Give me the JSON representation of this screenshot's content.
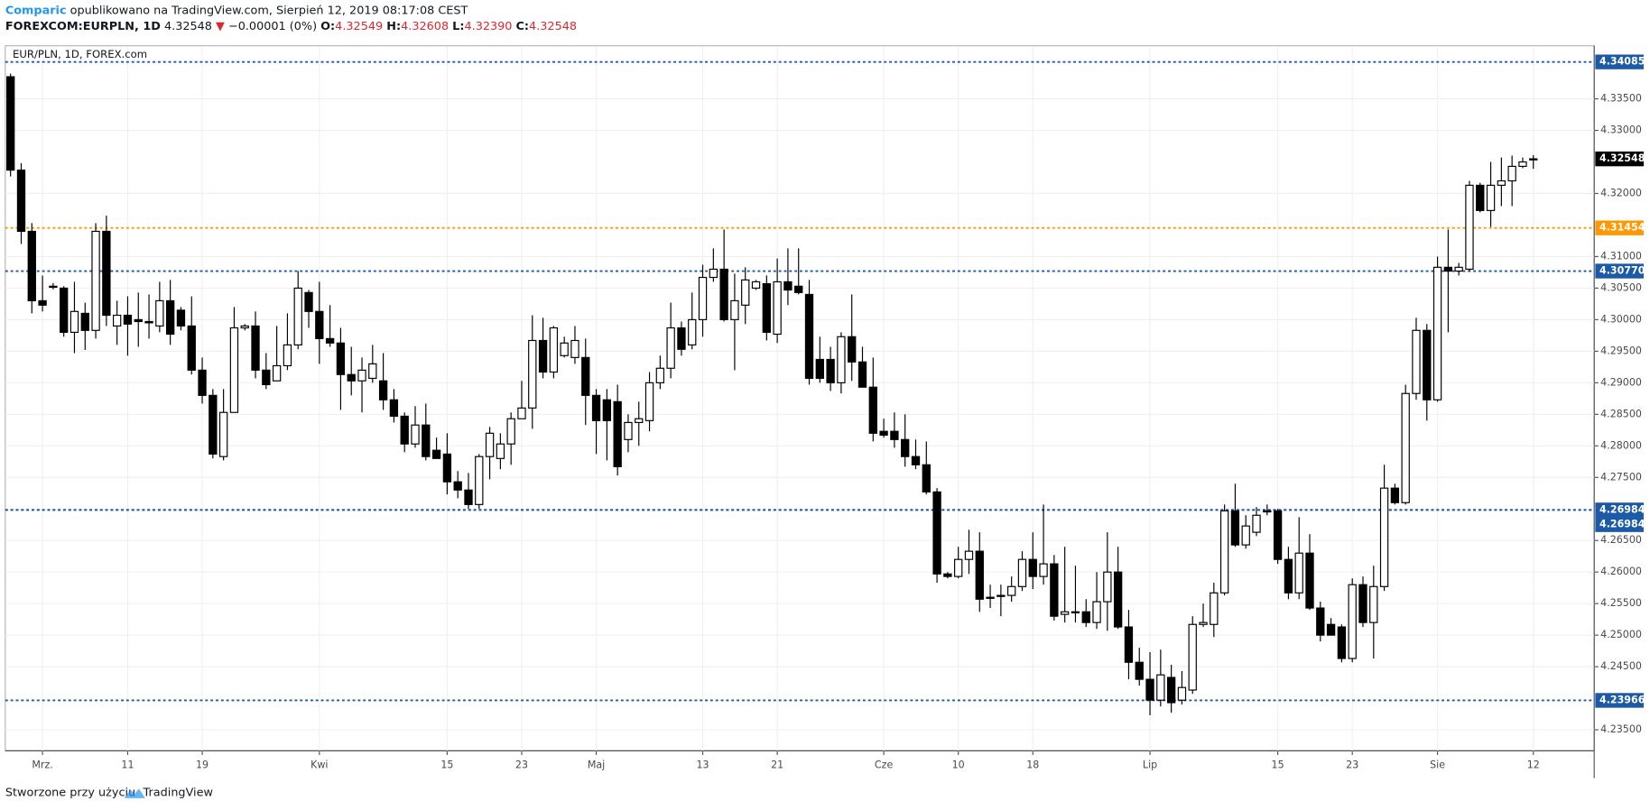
{
  "header": {
    "author": "Comparic",
    "published": "opublikowano na TradingView.com, Sierpień 12, 2019 08:17:08 CEST",
    "symbol": "FOREXCOM:EURPLN, 1D",
    "price": "4.32548",
    "arrow": "▼",
    "change": "−0.00001 (0%)",
    "ohlc": [
      {
        "key": "O:",
        "value": "4.32549"
      },
      {
        "key": "H:",
        "value": "4.32608"
      },
      {
        "key": "L:",
        "value": "4.32390"
      },
      {
        "key": "C:",
        "value": "4.32548"
      }
    ]
  },
  "footer": {
    "text": "Stworzone przy użyciu",
    "brand": "TradingView"
  },
  "chart_data": {
    "type": "candlestick",
    "title": "EUR/PLN, 1D, FOREX.com",
    "categories": [
      null,
      null,
      null,
      "Mrz.",
      null,
      null,
      null,
      null,
      null,
      null,
      null,
      "11",
      null,
      null,
      null,
      null,
      null,
      null,
      "19",
      null,
      null,
      null,
      null,
      null,
      null,
      null,
      null,
      null,
      null,
      "Kwi",
      null,
      null,
      null,
      null,
      null,
      null,
      null,
      null,
      null,
      null,
      null,
      "15",
      null,
      null,
      null,
      null,
      null,
      null,
      "23",
      null,
      null,
      null,
      null,
      null,
      null,
      "Maj",
      null,
      null,
      null,
      null,
      null,
      null,
      null,
      null,
      null,
      "13",
      null,
      null,
      null,
      null,
      null,
      null,
      "21",
      null,
      null,
      null,
      null,
      null,
      null,
      null,
      null,
      null,
      "Cze",
      null,
      null,
      null,
      null,
      null,
      null,
      "10",
      null,
      null,
      null,
      null,
      null,
      null,
      "18",
      null,
      null,
      null,
      null,
      null,
      null,
      null,
      null,
      null,
      null,
      "Lip",
      null,
      null,
      null,
      null,
      null,
      null,
      null,
      null,
      null,
      null,
      null,
      "15",
      null,
      null,
      null,
      null,
      null,
      null,
      "23",
      null,
      null,
      null,
      null,
      null,
      null,
      null,
      "Sie",
      null,
      null,
      null,
      null,
      null,
      null,
      null,
      null,
      "12"
    ],
    "open": [
      4.3385,
      4.3237,
      4.314,
      4.303,
      4.3053,
      4.305,
      4.298,
      4.301,
      4.2983,
      4.314,
      4.299,
      4.3007,
      4.3,
      4.2997,
      4.299,
      4.303,
      4.3015,
      4.299,
      4.292,
      4.288,
      4.2783,
      4.2853,
      4.2987,
      4.299,
      4.292,
      4.2903,
      4.2927,
      4.296,
      4.3043,
      4.3013,
      4.297,
      4.2963,
      4.2913,
      4.2903,
      4.2907,
      4.2903,
      4.2873,
      4.2847,
      4.2803,
      4.2833,
      4.2793,
      4.2787,
      4.2743,
      4.273,
      4.2707,
      4.2783,
      4.278,
      4.2803,
      4.2843,
      4.286,
      4.2967,
      4.2917,
      4.2943,
      4.294,
      4.294,
      4.288,
      4.2873,
      4.287,
      4.281,
      4.2837,
      4.284,
      4.29,
      4.2923,
      4.2987,
      4.296,
      4.3,
      4.3067,
      4.308,
      4.3,
      4.3023,
      4.305,
      4.3057,
      4.2977,
      4.306,
      4.3053,
      4.304,
      4.2937,
      4.2937,
      4.29,
      4.2973,
      4.2933,
      4.2893,
      4.2823,
      4.2823,
      4.281,
      4.2783,
      4.277,
      4.2727,
      4.2597,
      4.2593,
      4.262,
      4.2633,
      4.256,
      4.2563,
      4.2563,
      4.2577,
      4.262,
      4.2593,
      4.2613,
      4.2533,
      4.2537,
      4.2537,
      4.252,
      4.2553,
      4.26,
      4.2513,
      4.2457,
      4.243,
      4.2397,
      4.2433,
      4.2397,
      4.2413,
      4.2517,
      4.2517,
      4.2567,
      4.2697,
      4.2643,
      4.2663,
      4.2697,
      4.2697,
      4.262,
      4.2567,
      4.263,
      4.2543,
      4.2517,
      4.2513,
      4.2463,
      4.258,
      4.252,
      4.2577,
      4.2733,
      4.271,
      4.2883,
      4.2983,
      4.2873,
      4.3083,
      4.3077,
      4.308,
      4.3213,
      4.3173,
      4.3213,
      4.322,
      4.3243,
      4.32549
    ],
    "high": [
      4.339,
      4.3248,
      4.3153,
      4.307,
      4.3058,
      4.3053,
      4.306,
      4.3027,
      4.3153,
      4.3165,
      4.303,
      4.3037,
      4.3043,
      4.304,
      4.306,
      4.3063,
      4.302,
      4.3037,
      4.294,
      4.289,
      4.289,
      4.302,
      4.2993,
      4.3013,
      4.2947,
      4.299,
      4.301,
      4.3077,
      4.3047,
      4.306,
      4.3023,
      4.2987,
      4.2957,
      4.294,
      4.296,
      4.2947,
      4.289,
      4.2853,
      4.2863,
      4.2867,
      4.2813,
      4.282,
      4.276,
      4.2757,
      4.2787,
      4.283,
      4.282,
      4.2853,
      4.2903,
      4.3007,
      4.3003,
      4.299,
      4.2973,
      4.299,
      4.297,
      4.289,
      4.289,
      4.2897,
      4.285,
      4.287,
      4.2917,
      4.2943,
      4.3027,
      4.2997,
      4.3043,
      4.3087,
      4.3113,
      4.3143,
      4.3073,
      4.3083,
      4.3063,
      4.307,
      4.3097,
      4.3113,
      4.3113,
      4.3063,
      4.2973,
      4.2957,
      4.298,
      4.304,
      4.2957,
      4.294,
      4.2843,
      4.2853,
      4.285,
      4.281,
      4.2807,
      4.2733,
      4.26,
      4.264,
      4.2667,
      4.2663,
      4.258,
      4.258,
      4.2593,
      4.2633,
      4.2663,
      4.2707,
      4.2627,
      4.264,
      4.261,
      4.2557,
      4.26,
      4.2663,
      4.264,
      4.254,
      4.248,
      4.2473,
      4.2477,
      4.2453,
      4.2443,
      4.253,
      4.255,
      4.2583,
      4.2707,
      4.274,
      4.269,
      4.2703,
      4.2707,
      4.27,
      4.264,
      4.2687,
      4.266,
      4.2553,
      4.2527,
      4.2517,
      4.259,
      4.2593,
      4.261,
      4.277,
      4.274,
      4.2897,
      4.3003,
      4.2993,
      4.31,
      4.3143,
      4.309,
      4.322,
      4.3217,
      4.325,
      4.3257,
      4.326,
      4.3257,
      4.32608
    ],
    "low": [
      4.3227,
      4.312,
      4.301,
      4.3013,
      4.3048,
      4.2973,
      4.2947,
      4.2952,
      4.297,
      4.299,
      4.296,
      4.2943,
      4.2957,
      4.297,
      4.298,
      4.296,
      4.2983,
      4.2913,
      4.2867,
      4.278,
      4.2777,
      4.2853,
      4.2983,
      4.2907,
      4.289,
      4.2903,
      4.292,
      4.2953,
      4.2987,
      4.293,
      4.2957,
      4.2857,
      4.288,
      4.2853,
      4.29,
      4.2857,
      4.2837,
      4.279,
      4.2797,
      4.2777,
      4.278,
      4.2723,
      4.2717,
      4.27,
      4.27,
      4.2747,
      4.2763,
      4.277,
      4.2843,
      4.2827,
      4.2907,
      4.2907,
      4.294,
      4.293,
      4.2833,
      4.2787,
      4.2777,
      4.2753,
      4.279,
      4.28,
      4.2823,
      4.289,
      4.2907,
      4.2943,
      4.2953,
      4.2973,
      4.306,
      4.2997,
      4.292,
      4.2993,
      4.3047,
      4.2967,
      4.2963,
      4.3023,
      4.304,
      4.2897,
      4.29,
      4.2887,
      4.2883,
      4.2903,
      4.2893,
      4.2807,
      4.2813,
      4.2797,
      4.2767,
      4.2763,
      4.2723,
      4.2583,
      4.259,
      4.259,
      4.2597,
      4.2537,
      4.2543,
      4.253,
      4.2553,
      4.257,
      4.2573,
      4.258,
      4.2523,
      4.252,
      4.252,
      4.2513,
      4.251,
      4.2507,
      4.251,
      4.243,
      4.242,
      4.2373,
      4.2387,
      4.2377,
      4.239,
      4.2407,
      4.2513,
      4.2497,
      4.2563,
      4.264,
      4.2637,
      4.2657,
      4.269,
      4.2613,
      4.2557,
      4.2557,
      4.254,
      4.249,
      4.25,
      4.2457,
      4.2457,
      4.2513,
      4.2463,
      4.257,
      4.2707,
      4.2707,
      4.2873,
      4.284,
      4.287,
      4.298,
      4.307,
      4.3077,
      4.317,
      4.3147,
      4.318,
      4.318,
      4.324,
      4.3239
    ],
    "close": [
      4.3237,
      4.314,
      4.303,
      4.3023,
      4.3053,
      4.298,
      4.3013,
      4.2983,
      4.314,
      4.3007,
      4.3007,
      4.2993,
      4.2997,
      4.2995,
      4.303,
      4.2977,
      4.299,
      4.292,
      4.288,
      4.2787,
      4.2853,
      4.2987,
      4.299,
      4.292,
      4.2897,
      4.2927,
      4.296,
      4.305,
      4.3013,
      4.297,
      4.2963,
      4.2913,
      4.2903,
      4.292,
      4.293,
      4.2873,
      4.2847,
      4.2803,
      4.2833,
      4.2783,
      4.278,
      4.2743,
      4.273,
      4.2707,
      4.2783,
      4.282,
      4.2803,
      4.2843,
      4.286,
      4.2967,
      4.2917,
      4.2987,
      4.2963,
      4.2967,
      4.288,
      4.284,
      4.284,
      4.2767,
      4.2837,
      4.2843,
      4.29,
      4.2923,
      4.2987,
      4.2953,
      4.3,
      4.3067,
      4.308,
      4.3,
      4.303,
      4.3063,
      4.306,
      4.298,
      4.306,
      4.3047,
      4.3043,
      4.2907,
      4.2907,
      4.29,
      4.2973,
      4.2933,
      4.2893,
      4.282,
      4.2817,
      4.281,
      4.2783,
      4.277,
      4.2727,
      4.2597,
      4.2593,
      4.262,
      4.2633,
      4.2557,
      4.256,
      4.2563,
      4.2577,
      4.262,
      4.2593,
      4.2613,
      4.253,
      4.2537,
      4.2537,
      4.252,
      4.2553,
      4.26,
      4.2513,
      4.2457,
      4.243,
      4.2397,
      4.2437,
      4.2393,
      4.2417,
      4.2517,
      4.252,
      4.2567,
      4.2697,
      4.2643,
      4.2673,
      4.269,
      4.2697,
      4.262,
      4.2567,
      4.263,
      4.2543,
      4.25,
      4.25,
      4.2463,
      4.258,
      4.252,
      4.2577,
      4.2733,
      4.271,
      4.2883,
      4.2983,
      4.2873,
      4.3083,
      4.3077,
      4.3083,
      4.3213,
      4.3173,
      4.3213,
      4.322,
      4.3243,
      4.325,
      4.32548
    ],
    "up_color": "#ffffff",
    "down_color": "#000000",
    "wick_color": "#000000",
    "close_label": "4.32548",
    "ylim": [
      4.23167,
      4.34333
    ],
    "yticks": [
      {
        "value": 4.335,
        "label": "4.33500"
      },
      {
        "value": 4.33,
        "label": "4.33000"
      },
      {
        "value": 4.32,
        "label": "4.32000"
      },
      {
        "value": 4.31,
        "label": "4.31000"
      },
      {
        "value": 4.305,
        "label": "4.30500"
      },
      {
        "value": 4.3,
        "label": "4.30000"
      },
      {
        "value": 4.295,
        "label": "4.29500"
      },
      {
        "value": 4.29,
        "label": "4.29000"
      },
      {
        "value": 4.285,
        "label": "4.28500"
      },
      {
        "value": 4.28,
        "label": "4.28000"
      },
      {
        "value": 4.275,
        "label": "4.27500"
      },
      {
        "value": 4.265,
        "label": "4.26500"
      },
      {
        "value": 4.26,
        "label": "4.26000"
      },
      {
        "value": 4.255,
        "label": "4.25500"
      },
      {
        "value": 4.25,
        "label": "4.25000"
      },
      {
        "value": 4.245,
        "label": "4.24500"
      },
      {
        "value": 4.235,
        "label": "4.23500"
      }
    ],
    "levels": [
      {
        "value": 4.34085,
        "label": "4.34085",
        "color": "#1c5aa6"
      },
      {
        "value": 4.31454,
        "label": "4.31454",
        "color": "#ff9800"
      },
      {
        "value": 4.3077,
        "label": "4.30770",
        "color": "#1c5aa6"
      },
      {
        "value": 4.26984,
        "label": "4.26984",
        "color": "#1c5aa6"
      },
      {
        "value": 4.26984,
        "label": "4.26984",
        "color": "#1c5aa6"
      },
      {
        "value": 4.23966,
        "label": "4.23966",
        "color": "#1c5aa6"
      }
    ],
    "grid": true
  }
}
